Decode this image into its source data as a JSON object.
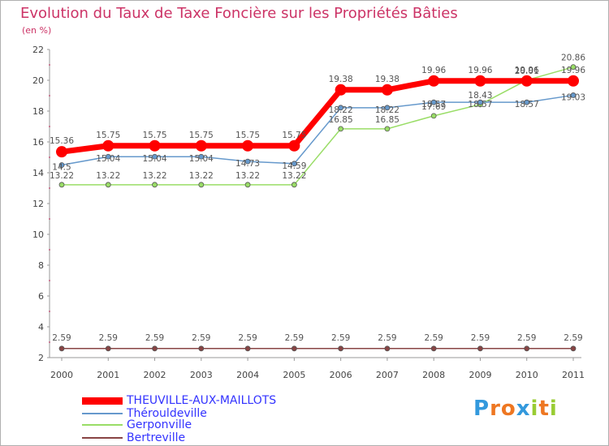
{
  "chart_data": {
    "type": "line",
    "title": "Evolution du Taux de Taxe Foncière sur les Propriétés Bâties",
    "subtitle": "(en %)",
    "categories": [
      "2000",
      "2001",
      "2002",
      "2003",
      "2004",
      "2005",
      "2006",
      "2007",
      "2008",
      "2009",
      "2010",
      "2011"
    ],
    "ylim": [
      2,
      22
    ],
    "yticks": [
      "2",
      "4",
      "6",
      "8",
      "10",
      "12",
      "14",
      "16",
      "18",
      "20",
      "22"
    ],
    "grid": false,
    "series": [
      {
        "name": "THEUVILLE-AUX-MAILLOTS",
        "color": "#ff0000",
        "values": [
          15.36,
          15.75,
          15.75,
          15.75,
          15.75,
          15.75,
          19.38,
          19.38,
          19.96,
          19.96,
          19.96,
          19.96
        ],
        "labels": [
          "15.36",
          "15.75",
          "15.75",
          "15.75",
          "15.75",
          "15.75",
          "19.38",
          "19.38",
          "19.96",
          "19.96",
          "19.96",
          "19.96"
        ]
      },
      {
        "name": "Thérouldeville",
        "color": "#6699cc",
        "values": [
          14.5,
          15.04,
          15.04,
          15.04,
          14.73,
          14.59,
          18.22,
          18.22,
          18.57,
          18.57,
          18.57,
          19.03
        ],
        "labels": [
          "14.5",
          "15.04",
          "15.04",
          "15.04",
          "14.73",
          "14.59",
          "18.22",
          "18.22",
          "18.57",
          "18.57",
          "18.57",
          "19.03"
        ]
      },
      {
        "name": "Gerponville",
        "color": "#99dd66",
        "values": [
          13.22,
          13.22,
          13.22,
          13.22,
          13.22,
          13.22,
          16.85,
          16.85,
          17.69,
          18.43,
          20.01,
          20.86
        ],
        "labels": [
          "13.22",
          "13.22",
          "13.22",
          "13.22",
          "13.22",
          "13.22",
          "16.85",
          "16.85",
          "17.69",
          "18.43",
          "20.01",
          "20.86"
        ]
      },
      {
        "name": "Bertreville",
        "color": "#884444",
        "values": [
          2.59,
          2.59,
          2.59,
          2.59,
          2.59,
          2.59,
          2.59,
          2.59,
          2.59,
          2.59,
          2.59,
          2.59
        ],
        "labels": [
          "2.59",
          "2.59",
          "2.59",
          "2.59",
          "2.59",
          "2.59",
          "2.59",
          "2.59",
          "2.59",
          "2.59",
          "2.59",
          "2.59"
        ]
      }
    ]
  },
  "logo": {
    "letters": [
      "P",
      "r",
      "o",
      "x",
      "i",
      "t",
      "i"
    ],
    "colors": [
      "#3399dd",
      "#ee7722",
      "#ee7722",
      "#3399dd",
      "#99cc33",
      "#ee7722",
      "#99cc33"
    ]
  }
}
